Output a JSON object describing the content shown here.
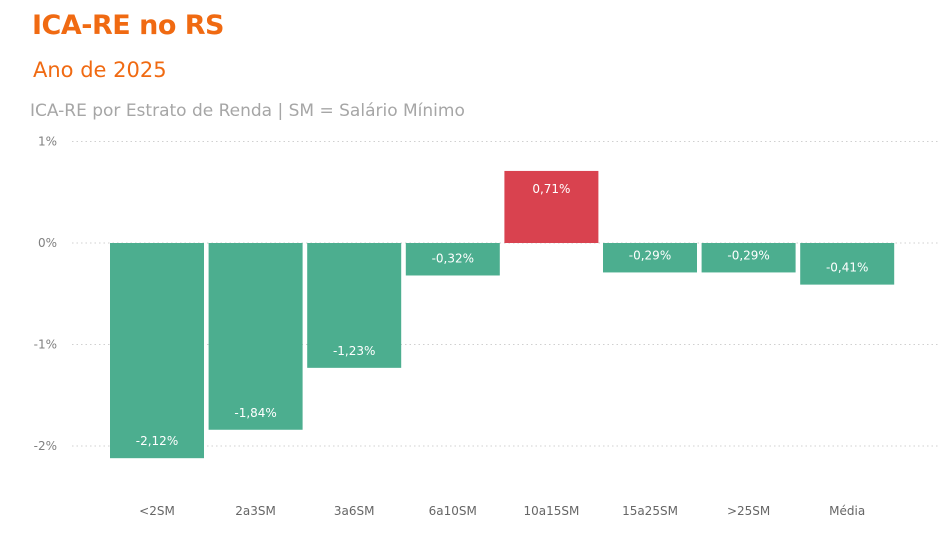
{
  "header": {
    "title": "ICA-RE no RS",
    "subtitle": "Ano de 2025"
  },
  "chart_data": {
    "type": "bar",
    "title": "ICA-RE por Estrato de Renda | SM = Salário Mínimo",
    "xlabel": "",
    "ylabel": "",
    "categories": [
      "<2SM",
      "2a3SM",
      "3a6SM",
      "6a10SM",
      "10a15SM",
      "15a25SM",
      ">25SM",
      "Média"
    ],
    "values": [
      -2.12,
      -1.84,
      -1.23,
      -0.32,
      0.71,
      -0.29,
      -0.29,
      -0.41
    ],
    "data_labels": [
      "-2,12%",
      "-1,84%",
      "-1,23%",
      "-0,32%",
      "0,71%",
      "-0,29%",
      "-0,29%",
      "-0,41%"
    ],
    "yticks": [
      1,
      0,
      -1,
      -2
    ],
    "ytick_labels": [
      "1%",
      "0%",
      "-1%",
      "-2%"
    ],
    "ylim": [
      -2.3,
      1.1
    ],
    "grid": true,
    "colors": {
      "negative": "#4CAE8F",
      "positive": "#D9424F"
    }
  }
}
